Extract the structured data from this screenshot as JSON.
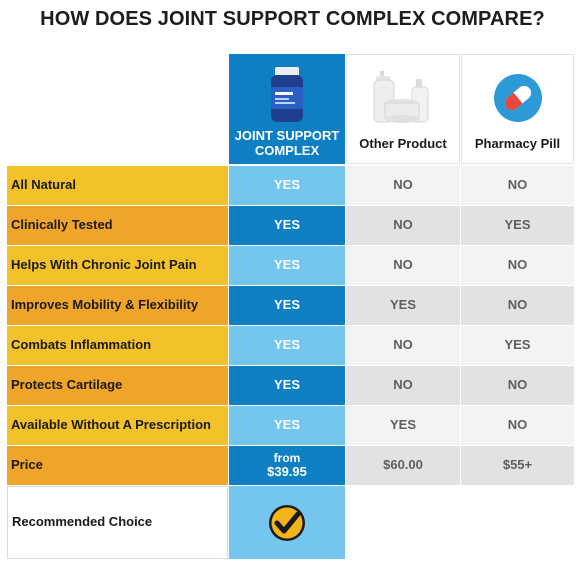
{
  "title": "HOW DOES JOINT SUPPORT COMPLEX COMPARE?",
  "columns": {
    "ours": {
      "label_line1": "JOINT SUPPORT",
      "label_line2": "COMPLEX"
    },
    "other": {
      "label": "Other Product"
    },
    "pharmacy": {
      "label": "Pharmacy Pill"
    }
  },
  "rows": [
    {
      "label": "All Natural",
      "ours": "YES",
      "other": "NO",
      "pharmacy": "NO"
    },
    {
      "label": "Clinically Tested",
      "ours": "YES",
      "other": "NO",
      "pharmacy": "YES"
    },
    {
      "label": "Helps With Chronic Joint Pain",
      "ours": "YES",
      "other": "NO",
      "pharmacy": "NO"
    },
    {
      "label": "Improves Mobility & Flexibility",
      "ours": "YES",
      "other": "YES",
      "pharmacy": "NO"
    },
    {
      "label": "Combats Inflammation",
      "ours": "YES",
      "other": "NO",
      "pharmacy": "YES"
    },
    {
      "label": "Protects Cartilage",
      "ours": "YES",
      "other": "NO",
      "pharmacy": "NO"
    },
    {
      "label": "Available Without A Prescription",
      "ours": "YES",
      "other": "YES",
      "pharmacy": "NO"
    }
  ],
  "price": {
    "label": "Price",
    "ours_from": "from",
    "ours_amount": "$39.95",
    "other": "$60.00",
    "pharmacy": "$55+"
  },
  "recommended": {
    "label": "Recommended Choice"
  },
  "colors": {
    "brand_blue": "#0f7fc3",
    "light_blue": "#75c6ef",
    "label_yellow": "#f3c12a",
    "label_orange": "#efa42a",
    "check_gold": "#f2b418"
  }
}
